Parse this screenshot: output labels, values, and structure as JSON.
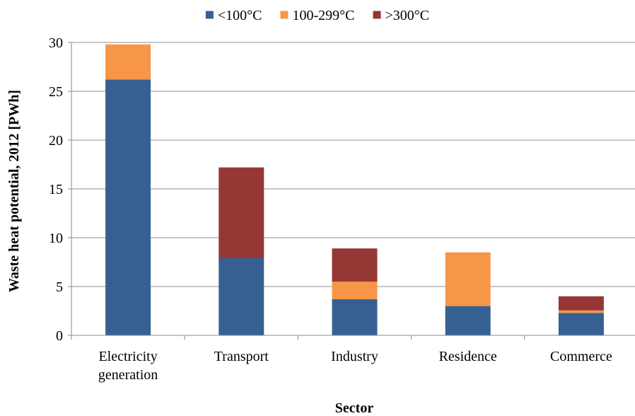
{
  "chart_data": {
    "type": "bar",
    "stacked": true,
    "title": "",
    "xlabel": "Sector",
    "ylabel": "Waste heat potential, 2012 [PWh]",
    "ylim": [
      0,
      30
    ],
    "yticks": [
      0,
      5,
      10,
      15,
      20,
      25,
      30
    ],
    "grid": true,
    "legend_position": "top-center",
    "categories": [
      [
        "Electricity",
        "generation"
      ],
      [
        "Transport"
      ],
      [
        "Industry"
      ],
      [
        "Residence"
      ],
      [
        "Commerce"
      ]
    ],
    "series": [
      {
        "name": "<100°C",
        "color": "#376092",
        "values": [
          26.2,
          7.9,
          3.7,
          3.0,
          2.3
        ]
      },
      {
        "name": "100-299°C",
        "color": "#F79646",
        "values": [
          3.6,
          0.0,
          1.8,
          5.5,
          0.25
        ]
      },
      {
        "name": ">300°C",
        "color": "#953735",
        "values": [
          0.0,
          9.3,
          3.4,
          0.0,
          1.45
        ]
      }
    ]
  }
}
